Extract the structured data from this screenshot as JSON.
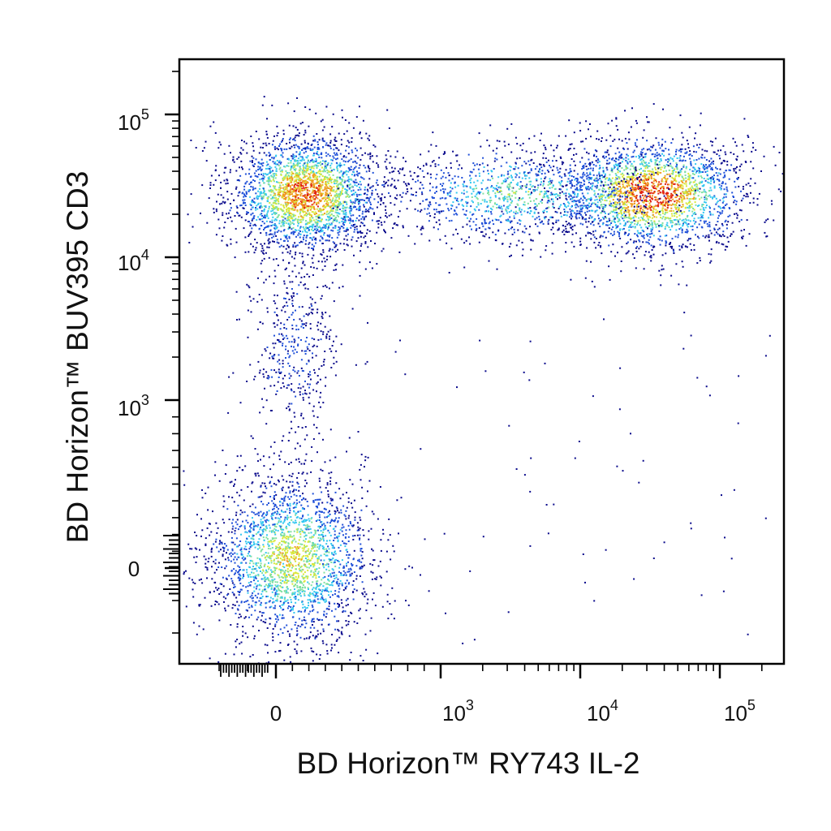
{
  "chart_data": {
    "type": "scatter",
    "subtype": "flow-cytometry-density-dot-plot",
    "title": "",
    "xlabel": "BD Horizon™ RY743  IL-2",
    "ylabel": "BD Horizon™ BUV395 CD3",
    "x_scale": "biexponential",
    "y_scale": "biexponential",
    "x_ticks": [
      {
        "base": "0",
        "exp": "",
        "value": 0
      },
      {
        "base": "10",
        "exp": "3",
        "value": 1000
      },
      {
        "base": "10",
        "exp": "4",
        "value": 10000
      },
      {
        "base": "10",
        "exp": "5",
        "value": 100000
      }
    ],
    "y_ticks": [
      {
        "base": "0",
        "exp": "",
        "value": 0
      },
      {
        "base": "10",
        "exp": "3",
        "value": 1000
      },
      {
        "base": "10",
        "exp": "4",
        "value": 10000
      },
      {
        "base": "10",
        "exp": "5",
        "value": 100000
      }
    ],
    "x_range": [
      -200,
      200000
    ],
    "y_range": [
      -200,
      200000
    ],
    "density_colors": [
      "#0a0a8c",
      "#1f4fd8",
      "#33c7f0",
      "#7fe0a0",
      "#d8e838",
      "#f09a20",
      "#e02010"
    ],
    "grid": false,
    "legend": "none",
    "populations": [
      {
        "name": "",
        "x_center": 180,
        "y_center": 28000,
        "cells": 2600,
        "peak": "red"
      },
      {
        "name": "",
        "x_center": 32000,
        "y_center": 28000,
        "cells": 2300,
        "peak": "red"
      },
      {
        "name": "",
        "x_center": 3500,
        "y_center": 28000,
        "cells": 1100,
        "peak": "cyan"
      },
      {
        "name": "",
        "x_center": 100,
        "y_center": 2500,
        "cells": 420,
        "peak": "blue"
      },
      {
        "name": "",
        "x_center": 90,
        "y_center": 60,
        "cells": 2300,
        "peak": "cyan"
      }
    ]
  }
}
